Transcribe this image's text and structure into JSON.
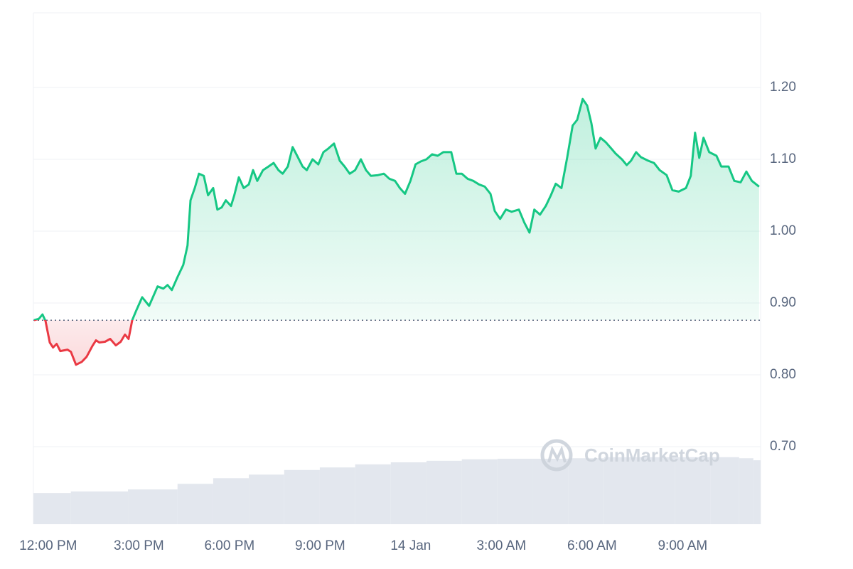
{
  "chart_data": {
    "type": "line",
    "x": [
      -0.47,
      -0.31,
      -0.19,
      -0.09,
      0.05,
      0.16,
      0.28,
      0.4,
      0.64,
      0.75,
      0.92,
      1.11,
      1.27,
      1.46,
      1.58,
      1.69,
      1.88,
      2.05,
      2.24,
      2.4,
      2.54,
      2.66,
      2.78,
      2.92,
      3.11,
      3.34,
      3.62,
      3.81,
      3.95,
      4.09,
      4.28,
      4.47,
      4.61,
      4.71,
      4.85,
      4.99,
      5.15,
      5.29,
      5.46,
      5.6,
      5.74,
      5.88,
      6.05,
      6.16,
      6.31,
      6.47,
      6.64,
      6.78,
      6.92,
      7.11,
      7.29,
      7.46,
      7.62,
      7.76,
      7.93,
      8.09,
      8.24,
      8.42,
      8.56,
      8.75,
      8.94,
      9.11,
      9.27,
      9.46,
      9.65,
      9.81,
      9.98,
      10.16,
      10.35,
      10.52,
      10.68,
      10.92,
      11.11,
      11.29,
      11.48,
      11.64,
      11.81,
      11.99,
      12.16,
      12.33,
      12.52,
      12.71,
      12.89,
      13.08,
      13.34,
      13.51,
      13.69,
      13.88,
      14.07,
      14.26,
      14.45,
      14.64,
      14.78,
      14.96,
      15.15,
      15.34,
      15.58,
      15.76,
      15.93,
      16.09,
      16.28,
      16.47,
      16.64,
      16.8,
      16.99,
      17.18,
      17.36,
      17.51,
      17.69,
      17.84,
      17.98,
      18.12,
      18.28,
      18.45,
      18.64,
      18.78,
      18.99,
      19.15,
      19.29,
      19.46,
      19.62,
      19.86,
      20.05,
      20.24,
      20.47,
      20.66,
      20.87,
      21.11,
      21.27,
      21.41,
      21.55,
      21.69,
      21.88,
      22.12,
      22.28,
      22.52,
      22.71,
      22.92,
      23.11,
      23.29,
      23.53
    ],
    "values": [
      0.876,
      0.878,
      0.884,
      0.875,
      0.845,
      0.838,
      0.843,
      0.833,
      0.835,
      0.832,
      0.814,
      0.818,
      0.825,
      0.84,
      0.848,
      0.845,
      0.846,
      0.85,
      0.841,
      0.846,
      0.856,
      0.85,
      0.876,
      0.89,
      0.908,
      0.896,
      0.923,
      0.92,
      0.925,
      0.918,
      0.936,
      0.953,
      0.98,
      1.043,
      1.06,
      1.08,
      1.077,
      1.05,
      1.06,
      1.03,
      1.033,
      1.043,
      1.035,
      1.05,
      1.075,
      1.06,
      1.065,
      1.085,
      1.07,
      1.085,
      1.09,
      1.095,
      1.085,
      1.08,
      1.09,
      1.117,
      1.105,
      1.09,
      1.085,
      1.1,
      1.093,
      1.11,
      1.115,
      1.122,
      1.098,
      1.09,
      1.08,
      1.085,
      1.1,
      1.085,
      1.077,
      1.078,
      1.08,
      1.073,
      1.07,
      1.06,
      1.052,
      1.07,
      1.093,
      1.097,
      1.1,
      1.107,
      1.105,
      1.11,
      1.11,
      1.08,
      1.08,
      1.073,
      1.07,
      1.065,
      1.062,
      1.052,
      1.028,
      1.017,
      1.03,
      1.027,
      1.03,
      1.012,
      0.998,
      1.03,
      1.023,
      1.035,
      1.05,
      1.066,
      1.06,
      1.103,
      1.147,
      1.155,
      1.184,
      1.175,
      1.15,
      1.115,
      1.13,
      1.124,
      1.115,
      1.108,
      1.1,
      1.092,
      1.098,
      1.11,
      1.103,
      1.098,
      1.095,
      1.085,
      1.078,
      1.057,
      1.055,
      1.06,
      1.077,
      1.137,
      1.102,
      1.13,
      1.11,
      1.105,
      1.09,
      1.09,
      1.07,
      1.068,
      1.083,
      1.07,
      1.062
    ],
    "baseline": 0.876,
    "up_color": "#16c784",
    "down_color": "#ea3943",
    "xlim": [
      -0.49,
      23.58
    ],
    "xticks": [
      {
        "value": 0,
        "label": "12:00 PM"
      },
      {
        "value": 3,
        "label": "3:00 PM"
      },
      {
        "value": 6,
        "label": "6:00 PM"
      },
      {
        "value": 9,
        "label": "9:00 PM"
      },
      {
        "value": 12,
        "label": "14 Jan"
      },
      {
        "value": 15,
        "label": "3:00 AM"
      },
      {
        "value": 18,
        "label": "6:00 AM"
      },
      {
        "value": 21,
        "label": "9:00 AM"
      }
    ],
    "ylim": [
      0.592,
      1.304
    ],
    "yticks": [
      {
        "value": 0.7,
        "label": "0.70"
      },
      {
        "value": 0.8,
        "label": "0.80"
      },
      {
        "value": 0.9,
        "label": "0.90"
      },
      {
        "value": 1.0,
        "label": "1.00"
      },
      {
        "value": 1.1,
        "label": "1.10"
      },
      {
        "value": 1.2,
        "label": "1.20"
      }
    ],
    "grid": true,
    "volume": {
      "color": "#e3e7ee",
      "x": [
        -0.49,
        0.75,
        2.64,
        4.28,
        5.46,
        6.64,
        7.81,
        8.99,
        10.16,
        11.34,
        12.52,
        13.69,
        14.87,
        16.05,
        17.22,
        18.4,
        19.58,
        20.75,
        21.93,
        22.87,
        23.34
      ],
      "values": [
        6.1,
        6.4,
        6.8,
        7.9,
        9.0,
        9.7,
        10.6,
        11.1,
        11.7,
        12.1,
        12.4,
        12.7,
        12.8,
        12.8,
        12.9,
        13.1,
        13.1,
        13.1,
        13.1,
        12.9,
        12.5
      ],
      "ylim": [
        0,
        100
      ]
    },
    "watermark": "CoinMarketCap"
  }
}
